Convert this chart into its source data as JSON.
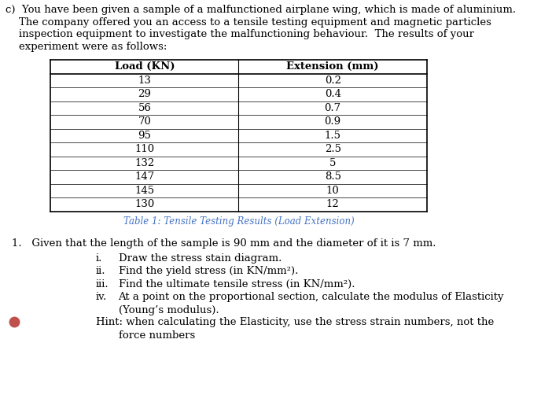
{
  "background_color": "#ffffff",
  "header_lines": [
    "c)  You have been given a sample of a malfunctioned airplane wing, which is made of aluminium.",
    "    The company offered you an access to a tensile testing equipment and magnetic particles",
    "    inspection equipment to investigate the malfunctioning behaviour.  The results of your",
    "    experiment were as follows:"
  ],
  "table_headers": [
    "Load (KN)",
    "Extension (mm)"
  ],
  "table_data": [
    [
      "13",
      "0.2"
    ],
    [
      "29",
      "0.4"
    ],
    [
      "56",
      "0.7"
    ],
    [
      "70",
      "0.9"
    ],
    [
      "95",
      "1.5"
    ],
    [
      "110",
      "2.5"
    ],
    [
      "132",
      "5"
    ],
    [
      "147",
      "8.5"
    ],
    [
      "145",
      "10"
    ],
    [
      "130",
      "12"
    ]
  ],
  "table_caption": "Table 1: Tensile Testing Results (Load Extension)",
  "table_caption_color": "#4472C4",
  "numbered_item": "1.   Given that the length of the sample is 90 mm and the diameter of it is 7 mm.",
  "sub_items": [
    [
      "i.",
      "Draw the stress stain diagram."
    ],
    [
      "ii.",
      "Find the yield stress (in KN/mm²)."
    ],
    [
      "iii.",
      "Find the ultimate tensile stress (in KN/mm²)."
    ],
    [
      "iv.",
      "At a point on the proportional section, calculate the modulus of Elasticity"
    ]
  ],
  "iv_line2": "(Young’s modulus).",
  "hint_line1": "Hint: when calculating the Elasticity, use the stress strain numbers, not the",
  "hint_line2": "force numbers",
  "bullet_color": "#C0504D",
  "fs_header": 9.5,
  "fs_table_hdr": 9.5,
  "fs_table_data": 9.5,
  "fs_caption": 8.5,
  "fs_body": 9.5,
  "font_family": "DejaVu Serif"
}
